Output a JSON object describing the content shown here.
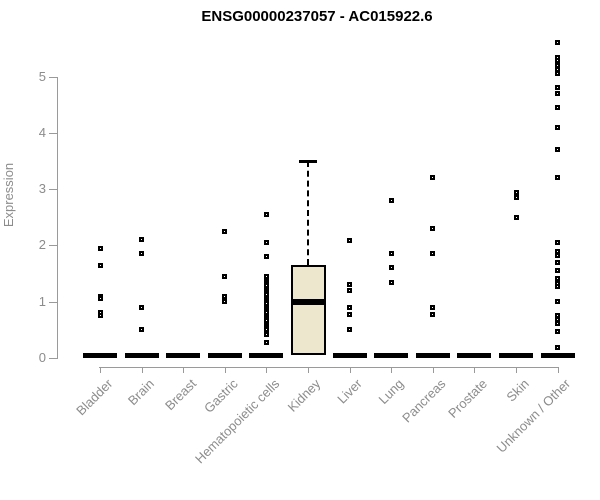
{
  "title": "ENSG00000237057 - AC015922.6",
  "colors": {
    "title": "#000000",
    "axis_line": "#9a9a9a",
    "axis_text": "#8c8c8c",
    "marker": "#000000",
    "box_fill": "#ece7cd"
  },
  "chart_data": {
    "type": "scatter",
    "subtype": "boxplot-with-jitterless-points",
    "title": "ENSG00000237057 - AC015922.6",
    "xlabel": "",
    "ylabel": "Expression",
    "ylim": [
      0,
      5.75
    ],
    "yticks": [
      0,
      1,
      2,
      3,
      4,
      5
    ],
    "grid": false,
    "legend": "none",
    "categories": [
      "Bladder",
      "Brain",
      "Breast",
      "Gastric",
      "Hematopoietic cells",
      "Kidney",
      "Liver",
      "Lung",
      "Pancreas",
      "Prostate",
      "Skin",
      "Unknown / Other"
    ],
    "series": [
      {
        "category": "Bladder",
        "bar_at_zero": true,
        "points": [
          1.95,
          1.65,
          1.1,
          1.05,
          0.8,
          0.75
        ]
      },
      {
        "category": "Brain",
        "bar_at_zero": true,
        "points": [
          2.1,
          1.85,
          0.9,
          0.5
        ]
      },
      {
        "category": "Breast",
        "bar_at_zero": true,
        "points": []
      },
      {
        "category": "Gastric",
        "bar_at_zero": true,
        "points": [
          2.25,
          1.45,
          1.1,
          1.0
        ]
      },
      {
        "category": "Hematopoietic cells",
        "bar_at_zero": true,
        "points": [
          2.55,
          2.05,
          1.8,
          1.44,
          1.4,
          1.36,
          1.32,
          1.28,
          1.24,
          1.2,
          1.16,
          1.12,
          1.08,
          1.04,
          1.0,
          0.96,
          0.92,
          0.88,
          0.84,
          0.8,
          0.74,
          0.7,
          0.66,
          0.62,
          0.58,
          0.54,
          0.5,
          0.46,
          0.42,
          0.28
        ]
      },
      {
        "category": "Kidney",
        "bar_at_zero": false,
        "points": [],
        "box": {
          "q1": 0,
          "median": 1.0,
          "q3": 1.65,
          "lower_whisker": 0,
          "upper_whisker": 3.5
        }
      },
      {
        "category": "Liver",
        "bar_at_zero": true,
        "points": [
          2.08,
          1.3,
          1.2,
          0.9,
          0.78,
          0.5
        ]
      },
      {
        "category": "Lung",
        "bar_at_zero": true,
        "points": [
          2.8,
          1.85,
          1.6,
          1.35
        ]
      },
      {
        "category": "Pancreas",
        "bar_at_zero": true,
        "points": [
          3.2,
          2.3,
          1.85,
          0.9,
          0.78
        ]
      },
      {
        "category": "Prostate",
        "bar_at_zero": true,
        "points": []
      },
      {
        "category": "Skin",
        "bar_at_zero": true,
        "points": [
          2.95,
          2.85,
          2.5
        ]
      },
      {
        "category": "Unknown / Other",
        "bar_at_zero": true,
        "points": [
          5.6,
          5.35,
          5.28,
          5.2,
          5.12,
          5.05,
          4.8,
          4.7,
          4.45,
          4.1,
          3.7,
          3.2,
          2.05,
          1.9,
          1.83,
          1.7,
          1.55,
          1.42,
          1.33,
          1.27,
          1.0,
          0.76,
          0.68,
          0.62,
          0.47,
          0.18
        ]
      }
    ]
  }
}
